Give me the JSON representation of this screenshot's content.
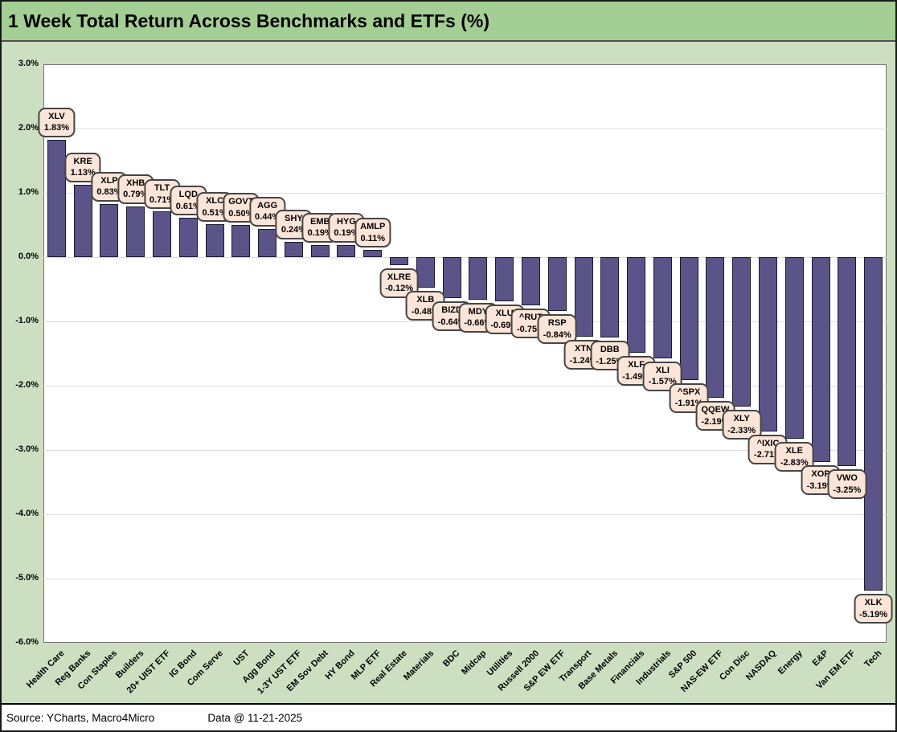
{
  "title": "1 Week Total Return Across Benchmarks and ETFs (%)",
  "footer": {
    "source": "Source: YCharts, Macro4Micro",
    "data_date": "Data @ 11-21-2025"
  },
  "colors": {
    "title_bg": "#a4cf94",
    "body_bg": "#cce0c1",
    "plot_bg": "#ffffff",
    "bar_fill": "#5b5489",
    "bar_border": "#1c1a30",
    "label_fill": "#fbe5d8",
    "label_border": "#454545",
    "gridline": "#dcdcdc",
    "plot_border": "#737373"
  },
  "chart_data": {
    "type": "bar",
    "title": "1 Week Total Return Across Benchmarks and ETFs (%)",
    "xlabel": "",
    "ylabel": "",
    "ylim": [
      -6.0,
      3.0
    ],
    "grid": true,
    "legend": "none",
    "ytick_labels": [
      "3.0%",
      "2.0%",
      "1.0%",
      "0.0%",
      "-1.0%",
      "-2.0%",
      "-3.0%",
      "-4.0%",
      "-5.0%",
      "-6.0%"
    ],
    "ytick_values": [
      3.0,
      2.0,
      1.0,
      0.0,
      -1.0,
      -2.0,
      -3.0,
      -4.0,
      -5.0,
      -6.0
    ],
    "points": [
      {
        "category": "Health Care",
        "ticker": "XLV",
        "value": 1.83,
        "label": "1.83%"
      },
      {
        "category": "Reg Banks",
        "ticker": "KRE",
        "value": 1.13,
        "label": "1.13%"
      },
      {
        "category": "Con Staples",
        "ticker": "XLP",
        "value": 0.83,
        "label": "0.83%"
      },
      {
        "category": "Builders",
        "ticker": "XHB",
        "value": 0.79,
        "label": "0.79%"
      },
      {
        "category": "20+ UIST ETF",
        "ticker": "TLT",
        "value": 0.71,
        "label": "0.71%"
      },
      {
        "category": "IG Bond",
        "ticker": "LQD",
        "value": 0.61,
        "label": "0.61%"
      },
      {
        "category": "Com Serve",
        "ticker": "XLC",
        "value": 0.51,
        "label": "0.51%"
      },
      {
        "category": "UST",
        "ticker": "GOVT",
        "value": 0.5,
        "label": "0.50%"
      },
      {
        "category": "Agg Bond",
        "ticker": "AGG",
        "value": 0.44,
        "label": "0.44%"
      },
      {
        "category": "1-3Y UST ETF",
        "ticker": "SHY",
        "value": 0.24,
        "label": "0.24%"
      },
      {
        "category": "EM Sov Debt",
        "ticker": "EMB",
        "value": 0.19,
        "label": "0.19%"
      },
      {
        "category": "HY Bond",
        "ticker": "HYG",
        "value": 0.19,
        "label": "0.19%"
      },
      {
        "category": "MLP ETF",
        "ticker": "AMLP",
        "value": 0.11,
        "label": "0.11%"
      },
      {
        "category": "Real Estate",
        "ticker": "XLRE",
        "value": -0.12,
        "label": "-0.12%"
      },
      {
        "category": "Materials",
        "ticker": "XLB",
        "value": -0.48,
        "label": "-0.48%"
      },
      {
        "category": "BDC",
        "ticker": "BIZD",
        "value": -0.64,
        "label": "-0.64%"
      },
      {
        "category": "Midcap",
        "ticker": "MDY",
        "value": -0.66,
        "label": "-0.66%"
      },
      {
        "category": "Utilities",
        "ticker": "XLU",
        "value": -0.69,
        "label": "-0.69%"
      },
      {
        "category": "Russell 2000",
        "ticker": "^RUT",
        "value": -0.75,
        "label": "-0.75%"
      },
      {
        "category": "S&P EW ETF",
        "ticker": "RSP",
        "value": -0.84,
        "label": "-0.84%"
      },
      {
        "category": "Transport",
        "ticker": "XTN",
        "value": -1.24,
        "label": "-1.24%"
      },
      {
        "category": "Base Metals",
        "ticker": "DBB",
        "value": -1.25,
        "label": "-1.25%"
      },
      {
        "category": "Financials",
        "ticker": "XLF",
        "value": -1.49,
        "label": "-1.49%"
      },
      {
        "category": "Industrials",
        "ticker": "XLI",
        "value": -1.57,
        "label": "-1.57%"
      },
      {
        "category": "S&P 500",
        "ticker": "^SPX",
        "value": -1.91,
        "label": "-1.91%"
      },
      {
        "category": "NAS-EW ETF",
        "ticker": "QQEW",
        "value": -2.19,
        "label": "-2.19%"
      },
      {
        "category": "Con Disc",
        "ticker": "XLY",
        "value": -2.33,
        "label": "-2.33%"
      },
      {
        "category": "NASDAQ",
        "ticker": "^IXIC",
        "value": -2.71,
        "label": "-2.71%"
      },
      {
        "category": "Energy",
        "ticker": "XLE",
        "value": -2.83,
        "label": "-2.83%"
      },
      {
        "category": "E&P",
        "ticker": "XOP",
        "value": -3.19,
        "label": "-3.19%"
      },
      {
        "category": "Van EM ETF",
        "ticker": "VWO",
        "value": -3.25,
        "label": "-3.25%"
      },
      {
        "category": "Tech",
        "ticker": "XLK",
        "value": -5.19,
        "label": "-5.19%"
      }
    ]
  }
}
